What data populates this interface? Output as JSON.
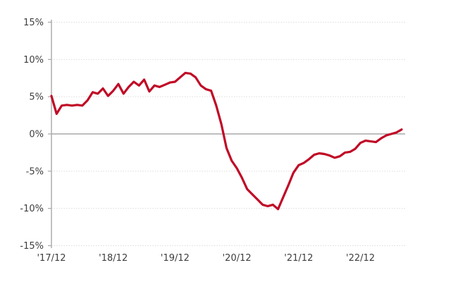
{
  "chart": {
    "background_color": "#ffffff",
    "line_color": "#c00a26",
    "grid_color": "#dcdcdc",
    "zero_line_color": "#a8a8a8",
    "axis_color": "#a8a8a8",
    "label_color": "#3d3d3d"
  },
  "chart_data": {
    "type": "line",
    "title": "",
    "xlabel": "",
    "ylabel": "",
    "legend": "none",
    "grid": "horizontal-dotted",
    "ylim": [
      -15,
      15
    ],
    "y_ticks": [
      15,
      10,
      5,
      0,
      -5,
      -10,
      -15
    ],
    "y_tick_labels": [
      "15%",
      "10%",
      "5%",
      "0%",
      "-5%",
      "-10%",
      "-15%"
    ],
    "x_tick_labels": [
      "'17/12",
      "'18/12",
      "'19/12",
      "'20/12",
      "'21/12",
      "'22/12"
    ],
    "x_tick_indices": [
      0,
      12,
      24,
      36,
      48,
      60
    ],
    "x": [
      "2017-12",
      "2018-01",
      "2018-02",
      "2018-03",
      "2018-04",
      "2018-05",
      "2018-06",
      "2018-07",
      "2018-08",
      "2018-09",
      "2018-10",
      "2018-11",
      "2018-12",
      "2019-01",
      "2019-02",
      "2019-03",
      "2019-04",
      "2019-05",
      "2019-06",
      "2019-07",
      "2019-08",
      "2019-09",
      "2019-10",
      "2019-11",
      "2019-12",
      "2020-01",
      "2020-02",
      "2020-03",
      "2020-04",
      "2020-05",
      "2020-06",
      "2020-07",
      "2020-08",
      "2020-09",
      "2020-10",
      "2020-11",
      "2020-12",
      "2021-01",
      "2021-02",
      "2021-03",
      "2021-04",
      "2021-05",
      "2021-06",
      "2021-07",
      "2021-08",
      "2021-09",
      "2021-10",
      "2021-11",
      "2021-12",
      "2022-01",
      "2022-02",
      "2022-03",
      "2022-04",
      "2022-05",
      "2022-06",
      "2022-07",
      "2022-08",
      "2022-09",
      "2022-10",
      "2022-11",
      "2022-12",
      "2023-01",
      "2023-02",
      "2023-03",
      "2023-04",
      "2023-05",
      "2023-06",
      "2023-07",
      "2023-08"
    ],
    "values": [
      5.1,
      2.7,
      3.8,
      3.9,
      3.8,
      3.9,
      3.8,
      4.5,
      5.6,
      5.4,
      6.1,
      5.1,
      5.8,
      6.7,
      5.4,
      6.3,
      7.0,
      6.5,
      7.3,
      5.7,
      6.5,
      6.3,
      6.6,
      6.9,
      7.0,
      7.6,
      8.2,
      8.1,
      7.6,
      6.5,
      6.0,
      5.8,
      3.8,
      1.3,
      -1.9,
      -3.6,
      -4.6,
      -5.9,
      -7.4,
      -8.1,
      -8.8,
      -9.5,
      -9.7,
      -9.5,
      -10.1,
      -8.5,
      -6.9,
      -5.2,
      -4.2,
      -3.9,
      -3.4,
      -2.8,
      -2.6,
      -2.7,
      -2.9,
      -3.2,
      -3.0,
      -2.5,
      -2.4,
      -2.0,
      -1.2,
      -0.9,
      -1.0,
      -1.1,
      -0.6,
      -0.2,
      0.0,
      0.2,
      0.6
    ]
  }
}
